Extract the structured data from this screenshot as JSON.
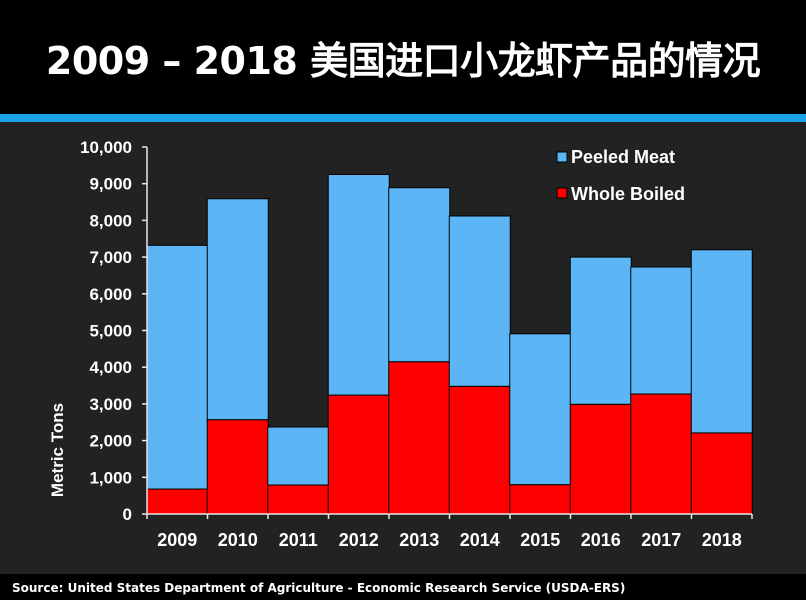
{
  "slide": {
    "title": "2009 – 2018 美国进口小龙虾产品的情况",
    "source": "Source:  United States Department of Agriculture - Economic Research Service (USDA-ERS)"
  },
  "colors": {
    "peeled": "#5cb6f5",
    "whole": "#ff0000",
    "accent": "#1aa3e8"
  },
  "chart_data": {
    "type": "bar",
    "stacked": true,
    "categories": [
      "2009",
      "2010",
      "2011",
      "2012",
      "2013",
      "2014",
      "2015",
      "2016",
      "2017",
      "2018"
    ],
    "series": [
      {
        "name": "Whole Boiled",
        "values": [
          680,
          2570,
          790,
          3240,
          4150,
          3480,
          800,
          2990,
          3270,
          2210
        ]
      },
      {
        "name": "Peeled Meat",
        "values": [
          6640,
          6020,
          1580,
          6010,
          4740,
          4640,
          4110,
          4010,
          3460,
          4990
        ]
      }
    ],
    "ylabel": "Metric Tons",
    "xlabel": "",
    "ylim": [
      0,
      10000
    ],
    "yticks": [
      "0",
      "1,000",
      "2,000",
      "3,000",
      "4,000",
      "5,000",
      "6,000",
      "7,000",
      "8,000",
      "9,000",
      "10,000"
    ],
    "legend": {
      "position": "top-right",
      "entries": [
        "Peeled Meat",
        "Whole Boiled"
      ]
    },
    "grid": false
  }
}
